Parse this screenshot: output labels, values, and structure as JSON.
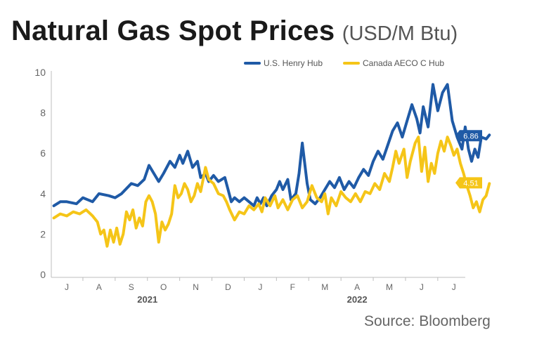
{
  "chart_data": {
    "type": "line",
    "title": "Natural Gas Spot Prices",
    "unit": "(USD/M Btu)",
    "ylim": [
      0,
      10
    ],
    "yticks": [
      "0",
      "2",
      "4",
      "6",
      "8",
      "10"
    ],
    "xlim": [
      0,
      12.6
    ],
    "months": [
      "J",
      "A",
      "S",
      "O",
      "N",
      "D",
      "J",
      "F",
      "M",
      "A",
      "M",
      "J",
      "J"
    ],
    "years": [
      "2021",
      "2022"
    ],
    "source": "Source: Bloomberg",
    "series": [
      {
        "name": "U.S. Henry Hub",
        "color": "#1f5aa6",
        "last_label": "6.86",
        "points": [
          [
            -0.4,
            3.4
          ],
          [
            -0.2,
            3.6
          ],
          [
            0,
            3.6
          ],
          [
            0.3,
            3.5
          ],
          [
            0.5,
            3.8
          ],
          [
            0.8,
            3.6
          ],
          [
            1.0,
            4.0
          ],
          [
            1.3,
            3.9
          ],
          [
            1.5,
            3.8
          ],
          [
            1.7,
            4.0
          ],
          [
            2.0,
            4.5
          ],
          [
            2.2,
            4.4
          ],
          [
            2.4,
            4.7
          ],
          [
            2.55,
            5.4
          ],
          [
            2.7,
            5.0
          ],
          [
            2.85,
            4.6
          ],
          [
            3.0,
            5.0
          ],
          [
            3.2,
            5.6
          ],
          [
            3.35,
            5.3
          ],
          [
            3.5,
            5.9
          ],
          [
            3.6,
            5.5
          ],
          [
            3.75,
            6.1
          ],
          [
            3.9,
            5.3
          ],
          [
            4.05,
            5.6
          ],
          [
            4.15,
            4.8
          ],
          [
            4.3,
            5.0
          ],
          [
            4.4,
            4.6
          ],
          [
            4.55,
            4.9
          ],
          [
            4.7,
            4.6
          ],
          [
            4.9,
            4.8
          ],
          [
            5.0,
            4.2
          ],
          [
            5.1,
            3.6
          ],
          [
            5.2,
            3.8
          ],
          [
            5.35,
            3.6
          ],
          [
            5.5,
            3.8
          ],
          [
            5.65,
            3.6
          ],
          [
            5.8,
            3.4
          ],
          [
            5.9,
            3.8
          ],
          [
            6.0,
            3.5
          ],
          [
            6.1,
            3.8
          ],
          [
            6.2,
            3.4
          ],
          [
            6.35,
            3.9
          ],
          [
            6.5,
            4.2
          ],
          [
            6.6,
            4.6
          ],
          [
            6.7,
            4.2
          ],
          [
            6.85,
            4.7
          ],
          [
            6.95,
            3.7
          ],
          [
            7.1,
            4.0
          ],
          [
            7.2,
            5.0
          ],
          [
            7.3,
            6.5
          ],
          [
            7.45,
            4.5
          ],
          [
            7.55,
            3.7
          ],
          [
            7.7,
            3.5
          ],
          [
            7.85,
            3.8
          ],
          [
            8.0,
            4.2
          ],
          [
            8.15,
            4.6
          ],
          [
            8.3,
            4.3
          ],
          [
            8.45,
            4.8
          ],
          [
            8.6,
            4.2
          ],
          [
            8.75,
            4.6
          ],
          [
            8.9,
            4.3
          ],
          [
            9.05,
            4.8
          ],
          [
            9.2,
            5.2
          ],
          [
            9.35,
            4.9
          ],
          [
            9.5,
            5.6
          ],
          [
            9.65,
            6.1
          ],
          [
            9.8,
            5.7
          ],
          [
            9.95,
            6.4
          ],
          [
            10.1,
            7.1
          ],
          [
            10.25,
            7.5
          ],
          [
            10.4,
            6.8
          ],
          [
            10.55,
            7.6
          ],
          [
            10.7,
            8.4
          ],
          [
            10.85,
            7.7
          ],
          [
            10.95,
            7.0
          ],
          [
            11.05,
            8.3
          ],
          [
            11.2,
            7.3
          ],
          [
            11.35,
            9.4
          ],
          [
            11.5,
            8.1
          ],
          [
            11.65,
            9.0
          ],
          [
            11.8,
            9.4
          ],
          [
            11.95,
            7.6
          ],
          [
            12.1,
            6.8
          ],
          [
            12.25,
            6.2
          ],
          [
            12.35,
            7.3
          ],
          [
            12.45,
            6.2
          ],
          [
            12.55,
            5.6
          ],
          [
            12.65,
            6.2
          ],
          [
            12.75,
            5.8
          ],
          [
            12.85,
            6.8
          ],
          [
            13.0,
            6.7
          ],
          [
            13.1,
            6.9
          ]
        ]
      },
      {
        "name": "Canada AECO C Hub",
        "color": "#f5c518",
        "last_label": "4.51",
        "points": [
          [
            -0.4,
            2.8
          ],
          [
            -0.2,
            3.0
          ],
          [
            0,
            2.9
          ],
          [
            0.2,
            3.1
          ],
          [
            0.4,
            3.0
          ],
          [
            0.6,
            3.2
          ],
          [
            0.8,
            2.9
          ],
          [
            0.95,
            2.6
          ],
          [
            1.05,
            2.0
          ],
          [
            1.15,
            2.2
          ],
          [
            1.25,
            1.4
          ],
          [
            1.35,
            2.2
          ],
          [
            1.45,
            1.6
          ],
          [
            1.55,
            2.3
          ],
          [
            1.65,
            1.5
          ],
          [
            1.75,
            2.0
          ],
          [
            1.85,
            3.1
          ],
          [
            1.95,
            2.7
          ],
          [
            2.05,
            3.2
          ],
          [
            2.15,
            2.3
          ],
          [
            2.25,
            2.8
          ],
          [
            2.35,
            2.4
          ],
          [
            2.45,
            3.6
          ],
          [
            2.55,
            3.9
          ],
          [
            2.65,
            3.6
          ],
          [
            2.75,
            3.0
          ],
          [
            2.85,
            1.6
          ],
          [
            2.95,
            2.6
          ],
          [
            3.05,
            2.2
          ],
          [
            3.15,
            2.5
          ],
          [
            3.25,
            3.0
          ],
          [
            3.35,
            4.4
          ],
          [
            3.45,
            3.8
          ],
          [
            3.55,
            4.0
          ],
          [
            3.65,
            4.5
          ],
          [
            3.75,
            4.2
          ],
          [
            3.85,
            3.6
          ],
          [
            3.95,
            3.9
          ],
          [
            4.05,
            4.5
          ],
          [
            4.15,
            4.1
          ],
          [
            4.3,
            5.3
          ],
          [
            4.4,
            4.7
          ],
          [
            4.55,
            4.5
          ],
          [
            4.7,
            4.0
          ],
          [
            4.85,
            3.9
          ],
          [
            4.95,
            3.6
          ],
          [
            5.05,
            3.2
          ],
          [
            5.2,
            2.7
          ],
          [
            5.35,
            3.1
          ],
          [
            5.5,
            3.0
          ],
          [
            5.65,
            3.4
          ],
          [
            5.8,
            3.2
          ],
          [
            5.95,
            3.5
          ],
          [
            6.05,
            3.1
          ],
          [
            6.15,
            3.8
          ],
          [
            6.3,
            3.4
          ],
          [
            6.45,
            3.9
          ],
          [
            6.55,
            3.3
          ],
          [
            6.7,
            3.7
          ],
          [
            6.85,
            3.2
          ],
          [
            7.0,
            3.7
          ],
          [
            7.15,
            3.9
          ],
          [
            7.3,
            3.3
          ],
          [
            7.45,
            3.6
          ],
          [
            7.6,
            4.4
          ],
          [
            7.75,
            3.8
          ],
          [
            7.9,
            3.6
          ],
          [
            8.0,
            4.0
          ],
          [
            8.1,
            3.0
          ],
          [
            8.2,
            3.8
          ],
          [
            8.35,
            3.4
          ],
          [
            8.5,
            4.1
          ],
          [
            8.65,
            3.8
          ],
          [
            8.8,
            3.6
          ],
          [
            8.95,
            4.0
          ],
          [
            9.1,
            3.6
          ],
          [
            9.25,
            4.1
          ],
          [
            9.4,
            4.0
          ],
          [
            9.55,
            4.5
          ],
          [
            9.7,
            4.2
          ],
          [
            9.85,
            5.0
          ],
          [
            10.0,
            4.6
          ],
          [
            10.1,
            5.3
          ],
          [
            10.2,
            6.1
          ],
          [
            10.3,
            5.5
          ],
          [
            10.45,
            6.2
          ],
          [
            10.55,
            4.8
          ],
          [
            10.65,
            5.6
          ],
          [
            10.8,
            6.5
          ],
          [
            10.9,
            6.8
          ],
          [
            11.0,
            5.1
          ],
          [
            11.1,
            6.3
          ],
          [
            11.2,
            4.6
          ],
          [
            11.3,
            5.5
          ],
          [
            11.4,
            5.0
          ],
          [
            11.5,
            6.0
          ],
          [
            11.6,
            6.6
          ],
          [
            11.7,
            6.1
          ],
          [
            11.8,
            6.8
          ],
          [
            11.9,
            6.4
          ],
          [
            12.0,
            5.9
          ],
          [
            12.1,
            6.2
          ],
          [
            12.2,
            5.5
          ],
          [
            12.3,
            5.0
          ],
          [
            12.4,
            4.4
          ],
          [
            12.5,
            3.9
          ],
          [
            12.6,
            3.3
          ],
          [
            12.7,
            3.6
          ],
          [
            12.8,
            3.1
          ],
          [
            12.9,
            3.7
          ],
          [
            13.0,
            3.9
          ],
          [
            13.1,
            4.5
          ]
        ]
      }
    ]
  }
}
